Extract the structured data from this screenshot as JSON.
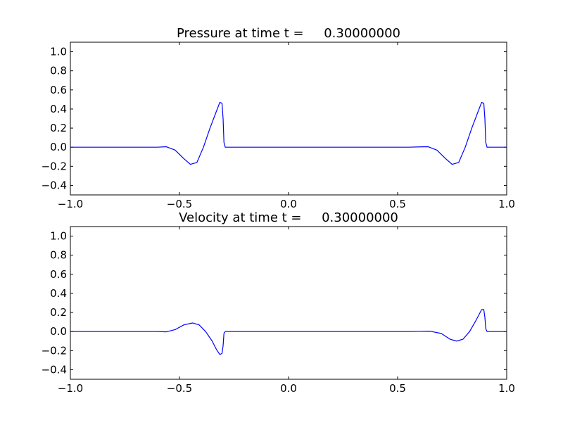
{
  "chart_data": [
    {
      "type": "line",
      "title": "Pressure at time t =     0.30000000",
      "xlim": [
        -1.0,
        1.0
      ],
      "ylim": [
        -0.5,
        1.1
      ],
      "xticks": [
        "−1.0",
        "−0.5",
        "0.0",
        "0.5",
        "1.0"
      ],
      "xtick_values": [
        -1.0,
        -0.5,
        0.0,
        0.5,
        1.0
      ],
      "yticks": [
        "−0.4",
        "−0.2",
        "0.0",
        "0.2",
        "0.4",
        "0.6",
        "0.8",
        "1.0"
      ],
      "ytick_values": [
        -0.4,
        -0.2,
        0.0,
        0.2,
        0.4,
        0.6,
        0.8,
        1.0
      ],
      "grid": false,
      "series": [
        {
          "color": "#0000ff",
          "x": [
            -1.0,
            -0.7,
            -0.6,
            -0.56,
            -0.52,
            -0.48,
            -0.45,
            -0.42,
            -0.39,
            -0.36,
            -0.33,
            -0.315,
            -0.305,
            -0.3,
            -0.296,
            -0.29,
            -0.2,
            0.0,
            0.4,
            0.55,
            0.6,
            0.64,
            0.68,
            0.72,
            0.75,
            0.78,
            0.81,
            0.84,
            0.87,
            0.885,
            0.895,
            0.9,
            0.904,
            0.91,
            0.95,
            1.0
          ],
          "y": [
            0.0,
            0.0,
            0.0,
            0.005,
            -0.03,
            -0.12,
            -0.18,
            -0.16,
            0.0,
            0.2,
            0.38,
            0.47,
            0.46,
            0.3,
            0.05,
            0.0,
            0.0,
            0.0,
            0.0,
            0.0,
            0.003,
            0.005,
            -0.03,
            -0.12,
            -0.18,
            -0.16,
            0.0,
            0.2,
            0.38,
            0.47,
            0.46,
            0.3,
            0.05,
            0.0,
            0.0,
            0.0
          ]
        }
      ]
    },
    {
      "type": "line",
      "title": "Velocity at time t =     0.30000000",
      "xlim": [
        -1.0,
        1.0
      ],
      "ylim": [
        -0.5,
        1.1
      ],
      "xticks": [
        "−1.0",
        "−0.5",
        "0.0",
        "0.5",
        "1.0"
      ],
      "xtick_values": [
        -1.0,
        -0.5,
        0.0,
        0.5,
        1.0
      ],
      "yticks": [
        "−0.4",
        "−0.2",
        "0.0",
        "0.2",
        "0.4",
        "0.6",
        "0.8",
        "1.0"
      ],
      "ytick_values": [
        -0.4,
        -0.2,
        0.0,
        0.2,
        0.4,
        0.6,
        0.8,
        1.0
      ],
      "grid": false,
      "series": [
        {
          "color": "#0000ff",
          "x": [
            -1.0,
            -0.7,
            -0.6,
            -0.56,
            -0.52,
            -0.48,
            -0.44,
            -0.41,
            -0.38,
            -0.35,
            -0.33,
            -0.315,
            -0.305,
            -0.3,
            -0.296,
            -0.29,
            -0.2,
            0.0,
            0.4,
            0.55,
            0.6,
            0.65,
            0.7,
            0.74,
            0.77,
            0.8,
            0.83,
            0.86,
            0.885,
            0.895,
            0.9,
            0.904,
            0.91,
            0.95,
            1.0
          ],
          "y": [
            0.0,
            0.0,
            0.0,
            -0.003,
            0.02,
            0.07,
            0.09,
            0.07,
            0.0,
            -0.1,
            -0.19,
            -0.24,
            -0.23,
            -0.15,
            -0.02,
            0.0,
            0.0,
            0.0,
            0.0,
            0.0,
            0.002,
            0.003,
            -0.02,
            -0.08,
            -0.1,
            -0.08,
            0.0,
            0.12,
            0.23,
            0.23,
            0.15,
            0.03,
            0.0,
            0.0,
            0.0
          ]
        }
      ]
    }
  ]
}
